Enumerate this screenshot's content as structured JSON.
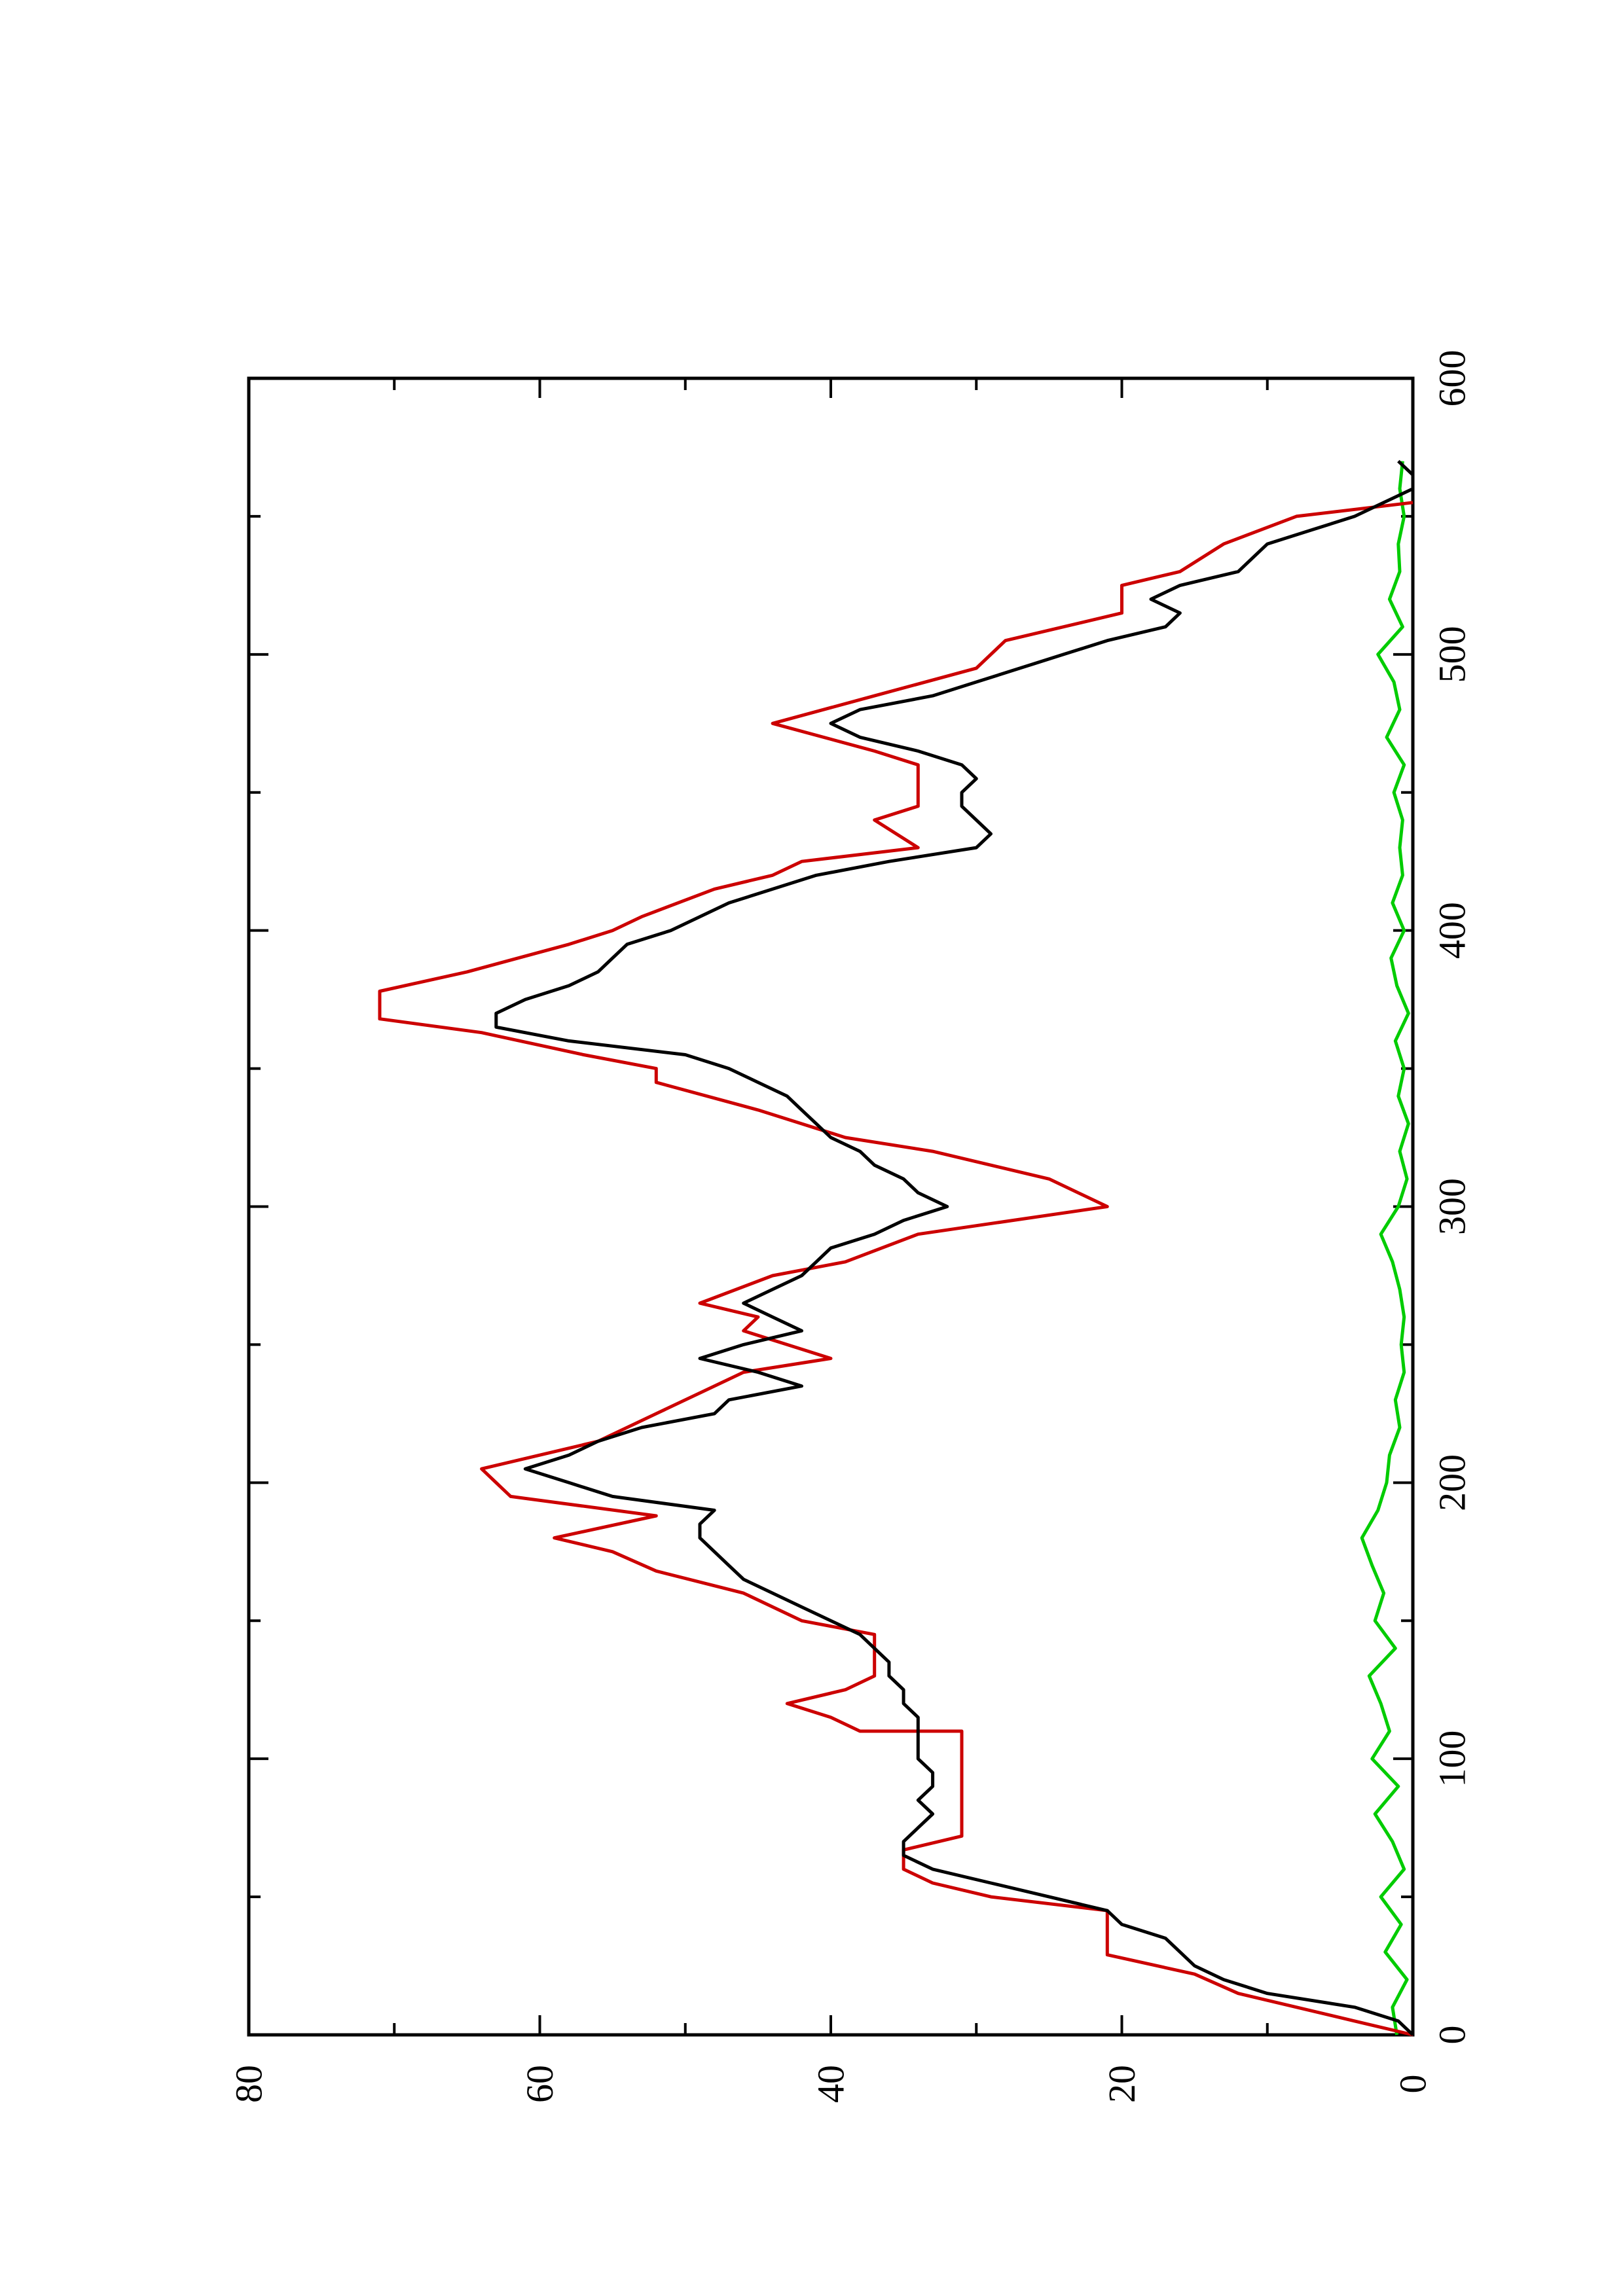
{
  "chart_data": {
    "type": "line",
    "orientation": "rotated-90-ccw",
    "title": "",
    "xlabel": "",
    "ylabel": "",
    "xlim": [
      0,
      600
    ],
    "ylim": [
      0,
      80
    ],
    "grid": false,
    "x_ticks": [
      0,
      100,
      200,
      300,
      400,
      500,
      600
    ],
    "x_tick_labels": [
      "0",
      "100",
      "200",
      "300",
      "400",
      "500",
      "600"
    ],
    "y_ticks": [
      0,
      20,
      40,
      60,
      80
    ],
    "y_tick_labels": [
      "0",
      "20",
      "40",
      "60",
      "80"
    ],
    "series": [
      {
        "color": "#cc0000",
        "style": "step",
        "points": [
          [
            0,
            0
          ],
          [
            5,
            4
          ],
          [
            15,
            12
          ],
          [
            22,
            15
          ],
          [
            29,
            21
          ],
          [
            45,
            21
          ],
          [
            50,
            29
          ],
          [
            55,
            33
          ],
          [
            60,
            35
          ],
          [
            67,
            35
          ],
          [
            72,
            31
          ],
          [
            82,
            31
          ],
          [
            110,
            31
          ],
          [
            110,
            38
          ],
          [
            115,
            40
          ],
          [
            120,
            43
          ],
          [
            125,
            39
          ],
          [
            130,
            37
          ],
          [
            145,
            37
          ],
          [
            150,
            42
          ],
          [
            160,
            46
          ],
          [
            168,
            52
          ],
          [
            175,
            55
          ],
          [
            180,
            59
          ],
          [
            188,
            52
          ],
          [
            195,
            62
          ],
          [
            205,
            64
          ],
          [
            215,
            56
          ],
          [
            225,
            52
          ],
          [
            235,
            48
          ],
          [
            240,
            46
          ],
          [
            245,
            40
          ],
          [
            250,
            43
          ],
          [
            255,
            46
          ],
          [
            260,
            45
          ],
          [
            265,
            49
          ],
          [
            275,
            44
          ],
          [
            280,
            39
          ],
          [
            290,
            34
          ],
          [
            300,
            21
          ],
          [
            310,
            25
          ],
          [
            320,
            33
          ],
          [
            325,
            39
          ],
          [
            335,
            45
          ],
          [
            345,
            52
          ],
          [
            350,
            52
          ],
          [
            355,
            57
          ],
          [
            363,
            64
          ],
          [
            368,
            71
          ],
          [
            378,
            71
          ],
          [
            385,
            65
          ],
          [
            395,
            58
          ],
          [
            400,
            55
          ],
          [
            405,
            53
          ],
          [
            415,
            48
          ],
          [
            420,
            44
          ],
          [
            425,
            42
          ],
          [
            430,
            34
          ],
          [
            440,
            37
          ],
          [
            445,
            34
          ],
          [
            460,
            34
          ],
          [
            465,
            37
          ],
          [
            475,
            44
          ],
          [
            485,
            37
          ],
          [
            495,
            30
          ],
          [
            505,
            28
          ],
          [
            515,
            20
          ],
          [
            525,
            20
          ],
          [
            530,
            16
          ],
          [
            540,
            13
          ],
          [
            550,
            8
          ],
          [
            555,
            0
          ]
        ]
      },
      {
        "color": "#000000",
        "style": "line",
        "points": [
          [
            0,
            0
          ],
          [
            5,
            1
          ],
          [
            10,
            4
          ],
          [
            15,
            10
          ],
          [
            20,
            13
          ],
          [
            25,
            15
          ],
          [
            30,
            16
          ],
          [
            35,
            17
          ],
          [
            40,
            20
          ],
          [
            45,
            21
          ],
          [
            50,
            25
          ],
          [
            55,
            29
          ],
          [
            60,
            33
          ],
          [
            65,
            35
          ],
          [
            70,
            35
          ],
          [
            75,
            34
          ],
          [
            80,
            33
          ],
          [
            85,
            34
          ],
          [
            90,
            33
          ],
          [
            95,
            33
          ],
          [
            100,
            34
          ],
          [
            105,
            34
          ],
          [
            110,
            34
          ],
          [
            115,
            34
          ],
          [
            120,
            35
          ],
          [
            125,
            35
          ],
          [
            130,
            36
          ],
          [
            135,
            36
          ],
          [
            140,
            37
          ],
          [
            145,
            38
          ],
          [
            150,
            40
          ],
          [
            155,
            42
          ],
          [
            160,
            44
          ],
          [
            165,
            46
          ],
          [
            170,
            47
          ],
          [
            175,
            48
          ],
          [
            180,
            49
          ],
          [
            185,
            49
          ],
          [
            190,
            48
          ],
          [
            195,
            55
          ],
          [
            200,
            58
          ],
          [
            205,
            61
          ],
          [
            210,
            58
          ],
          [
            215,
            56
          ],
          [
            220,
            53
          ],
          [
            225,
            48
          ],
          [
            230,
            47
          ],
          [
            235,
            42
          ],
          [
            240,
            45
          ],
          [
            245,
            49
          ],
          [
            250,
            46
          ],
          [
            255,
            42
          ],
          [
            260,
            44
          ],
          [
            265,
            46
          ],
          [
            270,
            44
          ],
          [
            275,
            42
          ],
          [
            280,
            41
          ],
          [
            285,
            40
          ],
          [
            290,
            37
          ],
          [
            295,
            35
          ],
          [
            300,
            32
          ],
          [
            305,
            34
          ],
          [
            310,
            35
          ],
          [
            315,
            37
          ],
          [
            320,
            38
          ],
          [
            325,
            40
          ],
          [
            330,
            41
          ],
          [
            335,
            42
          ],
          [
            340,
            43
          ],
          [
            345,
            45
          ],
          [
            350,
            47
          ],
          [
            355,
            50
          ],
          [
            360,
            58
          ],
          [
            365,
            63
          ],
          [
            370,
            63
          ],
          [
            375,
            61
          ],
          [
            380,
            58
          ],
          [
            385,
            56
          ],
          [
            390,
            55
          ],
          [
            395,
            54
          ],
          [
            400,
            51
          ],
          [
            405,
            49
          ],
          [
            410,
            47
          ],
          [
            415,
            44
          ],
          [
            420,
            41
          ],
          [
            425,
            36
          ],
          [
            430,
            30
          ],
          [
            435,
            29
          ],
          [
            440,
            30
          ],
          [
            445,
            31
          ],
          [
            450,
            31
          ],
          [
            455,
            30
          ],
          [
            460,
            31
          ],
          [
            465,
            34
          ],
          [
            470,
            38
          ],
          [
            475,
            40
          ],
          [
            480,
            38
          ],
          [
            485,
            33
          ],
          [
            490,
            30
          ],
          [
            495,
            27
          ],
          [
            500,
            24
          ],
          [
            505,
            21
          ],
          [
            510,
            17
          ],
          [
            515,
            16
          ],
          [
            520,
            18
          ],
          [
            525,
            16
          ],
          [
            530,
            12
          ],
          [
            535,
            11
          ],
          [
            540,
            10
          ],
          [
            545,
            7
          ],
          [
            550,
            4
          ],
          [
            555,
            2
          ],
          [
            560,
            0
          ],
          [
            565,
            0
          ],
          [
            570,
            1
          ]
        ]
      },
      {
        "color": "#00cc00",
        "style": "line",
        "points": [
          [
            0,
            1.1
          ],
          [
            10,
            1.4
          ],
          [
            20,
            0.4
          ],
          [
            30,
            1.9
          ],
          [
            40,
            0.8
          ],
          [
            50,
            2.2
          ],
          [
            60,
            0.6
          ],
          [
            70,
            1.4
          ],
          [
            80,
            2.6
          ],
          [
            90,
            1.0
          ],
          [
            100,
            2.8
          ],
          [
            110,
            1.6
          ],
          [
            120,
            2.2
          ],
          [
            130,
            3.0
          ],
          [
            140,
            1.2
          ],
          [
            150,
            2.6
          ],
          [
            160,
            2.0
          ],
          [
            170,
            2.8
          ],
          [
            180,
            3.5
          ],
          [
            190,
            2.4
          ],
          [
            200,
            1.8
          ],
          [
            210,
            1.6
          ],
          [
            220,
            0.9
          ],
          [
            230,
            1.2
          ],
          [
            240,
            0.6
          ],
          [
            250,
            0.8
          ],
          [
            260,
            0.6
          ],
          [
            270,
            0.9
          ],
          [
            280,
            1.4
          ],
          [
            290,
            2.2
          ],
          [
            300,
            1.0
          ],
          [
            310,
            0.4
          ],
          [
            320,
            0.9
          ],
          [
            330,
            0.3
          ],
          [
            340,
            1.0
          ],
          [
            350,
            0.6
          ],
          [
            360,
            1.2
          ],
          [
            370,
            0.3
          ],
          [
            380,
            1.1
          ],
          [
            390,
            1.5
          ],
          [
            400,
            0.6
          ],
          [
            410,
            1.4
          ],
          [
            420,
            0.7
          ],
          [
            430,
            0.9
          ],
          [
            440,
            0.7
          ],
          [
            450,
            1.3
          ],
          [
            460,
            0.6
          ],
          [
            470,
            1.8
          ],
          [
            480,
            0.9
          ],
          [
            490,
            1.3
          ],
          [
            500,
            2.4
          ],
          [
            510,
            0.7
          ],
          [
            520,
            1.6
          ],
          [
            530,
            0.9
          ],
          [
            540,
            1.0
          ],
          [
            550,
            0.6
          ],
          [
            560,
            0.9
          ],
          [
            570,
            0.7
          ]
        ]
      }
    ]
  }
}
